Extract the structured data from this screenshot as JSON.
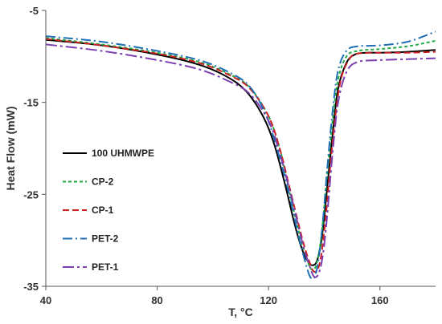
{
  "chart_data": {
    "type": "line",
    "title": "",
    "xlabel": "T, °C",
    "ylabel": "Heat Flow (mW)",
    "xlim": [
      40,
      180
    ],
    "ylim": [
      -35,
      -5
    ],
    "x_ticks": [
      "40",
      "80",
      "120",
      "160"
    ],
    "y_ticks": [
      "-5",
      "-15",
      "-25",
      "-35"
    ],
    "x_tick_values": [
      40,
      80,
      120,
      160
    ],
    "y_tick_values": [
      -5,
      -15,
      -25,
      -35
    ],
    "grid": false,
    "legend_position": "left-center",
    "series": [
      {
        "name": "100 UHMWPE",
        "color": "#000000",
        "dash": "solid",
        "x": [
          40,
          60,
          80,
          95,
          105,
          112,
          118,
          122,
          126,
          129,
          131,
          133,
          135,
          136,
          137,
          138,
          139,
          140,
          141,
          143,
          145,
          148,
          151,
          155,
          160,
          170,
          180
        ],
        "y": [
          -8.2,
          -8.8,
          -9.8,
          -10.9,
          -12.2,
          -13.8,
          -16.5,
          -19.5,
          -24.0,
          -27.8,
          -30.0,
          -31.7,
          -32.6,
          -32.7,
          -32.5,
          -31.6,
          -30.0,
          -27.5,
          -24.5,
          -18.5,
          -13.5,
          -10.7,
          -9.8,
          -9.6,
          -9.6,
          -9.5,
          -9.3
        ]
      },
      {
        "name": "CP-2",
        "color": "#22aa44",
        "dash": "short-dash",
        "x": [
          40,
          60,
          80,
          95,
          105,
          113,
          120,
          124,
          127,
          130,
          132,
          134,
          135,
          136,
          137,
          138,
          139,
          140,
          141,
          143,
          145,
          148,
          152,
          160,
          170,
          180
        ],
        "y": [
          -8.0,
          -8.7,
          -9.6,
          -10.6,
          -11.8,
          -13.3,
          -16.5,
          -20.0,
          -24.0,
          -28.0,
          -30.3,
          -32.2,
          -33.0,
          -33.2,
          -32.8,
          -31.5,
          -29.5,
          -26.5,
          -23.0,
          -17.0,
          -12.5,
          -10.0,
          -9.4,
          -9.2,
          -8.9,
          -8.3
        ]
      },
      {
        "name": "CP-1",
        "color": "#cc2222",
        "dash": "dash",
        "x": [
          40,
          60,
          80,
          95,
          105,
          113,
          120,
          124,
          128,
          131,
          133,
          135,
          136,
          137,
          138,
          139,
          140,
          141,
          142,
          144,
          146,
          149,
          152,
          160,
          170,
          180
        ],
        "y": [
          -8.1,
          -8.8,
          -9.7,
          -10.7,
          -11.9,
          -13.4,
          -16.5,
          -20.0,
          -24.8,
          -28.5,
          -30.8,
          -32.6,
          -33.3,
          -33.4,
          -32.9,
          -31.5,
          -29.0,
          -26.0,
          -22.5,
          -16.5,
          -12.5,
          -10.3,
          -9.7,
          -9.6,
          -9.6,
          -9.5
        ]
      },
      {
        "name": "PET-2",
        "color": "#1f6fb4",
        "dash": "dash-dot",
        "x": [
          40,
          60,
          80,
          95,
          105,
          113,
          119,
          123,
          127,
          130,
          132,
          134,
          135,
          136,
          137,
          138,
          139,
          140,
          141,
          143,
          145,
          148,
          152,
          160,
          170,
          180
        ],
        "y": [
          -7.8,
          -8.4,
          -9.4,
          -10.4,
          -11.6,
          -13.2,
          -16.3,
          -20.0,
          -24.5,
          -28.5,
          -31.0,
          -33.2,
          -34.0,
          -34.2,
          -33.6,
          -32.0,
          -29.5,
          -26.3,
          -22.5,
          -16.0,
          -11.5,
          -9.4,
          -8.9,
          -8.8,
          -8.4,
          -7.3
        ]
      },
      {
        "name": "PET-1",
        "color": "#7b3fb0",
        "dash": "long-dash-dot",
        "x": [
          40,
          60,
          80,
          95,
          105,
          113,
          120,
          124,
          128,
          131,
          133,
          135,
          136,
          137,
          138,
          139,
          140,
          141,
          142,
          143,
          145,
          148,
          152,
          160,
          170,
          180
        ],
        "y": [
          -8.7,
          -9.4,
          -10.4,
          -11.4,
          -12.6,
          -14.0,
          -17.0,
          -20.5,
          -25.0,
          -28.8,
          -31.2,
          -33.0,
          -33.8,
          -34.0,
          -33.6,
          -32.5,
          -30.5,
          -27.5,
          -24.0,
          -20.5,
          -15.0,
          -11.7,
          -10.6,
          -10.4,
          -10.3,
          -10.2
        ]
      }
    ]
  }
}
